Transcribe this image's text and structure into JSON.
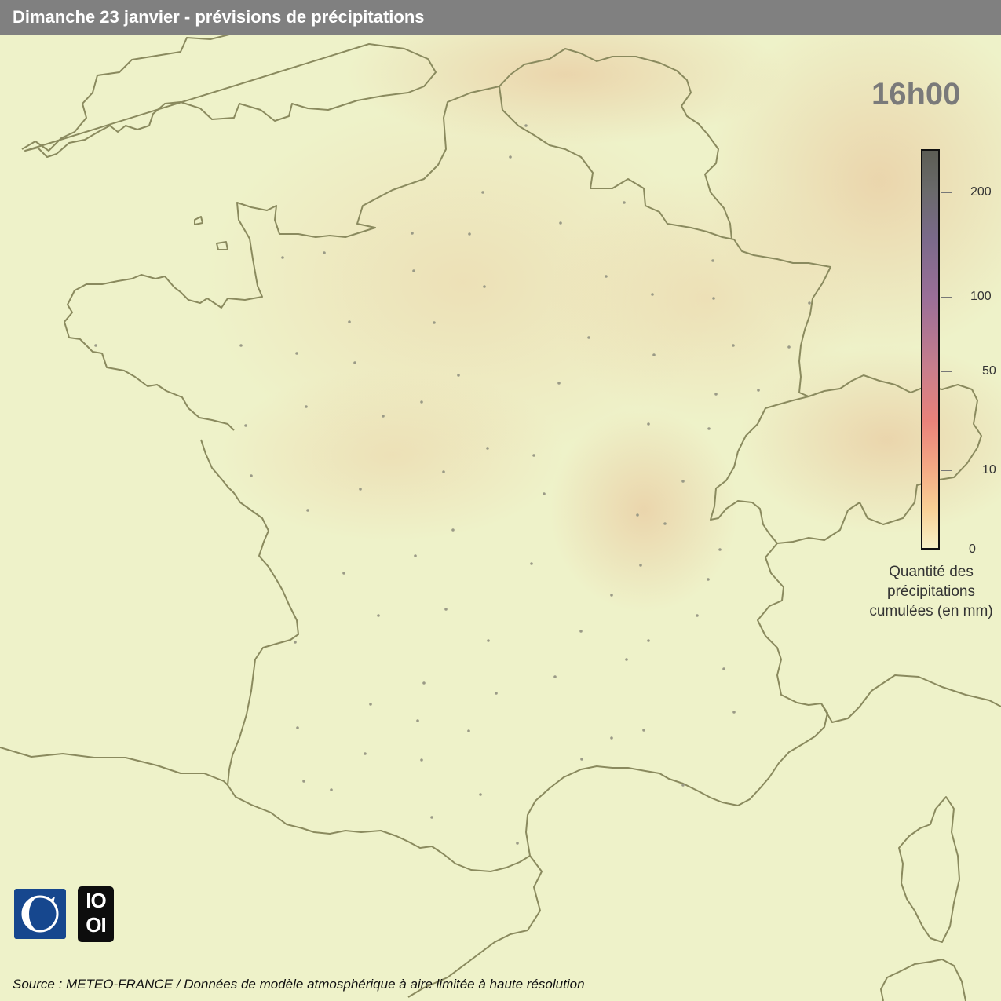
{
  "title": "Dimanche 23 janvier - prévisions de précipitations",
  "time_label": "16h00",
  "legend": {
    "ticks": [
      {
        "value": 0,
        "label": "0"
      },
      {
        "value": 10,
        "label": "10"
      },
      {
        "value": 50,
        "label": "50"
      },
      {
        "value": 100,
        "label": "100"
      },
      {
        "value": 200,
        "label": "200"
      }
    ],
    "caption_lines": [
      "Quantité des",
      "précipitations",
      "cumulées (en mm)"
    ],
    "colors": [
      "#f7f1c6",
      "#f9cf95",
      "#f4a985",
      "#e9827a",
      "#c87e8c",
      "#9a6f98",
      "#7a6a8a",
      "#6a6a6a",
      "#5c5d55"
    ]
  },
  "logos": {
    "meteo_france": "meteo-france-logo",
    "io": {
      "top": "IO",
      "bottom": "OI"
    }
  },
  "source": "Source : METEO-FRANCE / Données de modèle atmosphérique à aire limitée à haute résolution",
  "colors": {
    "background": "#eef2c9",
    "title_bar": "#808080",
    "border_line": "#8a8a5e",
    "relief": "#e8c9a0",
    "city_dot": "#9a9a86"
  }
}
